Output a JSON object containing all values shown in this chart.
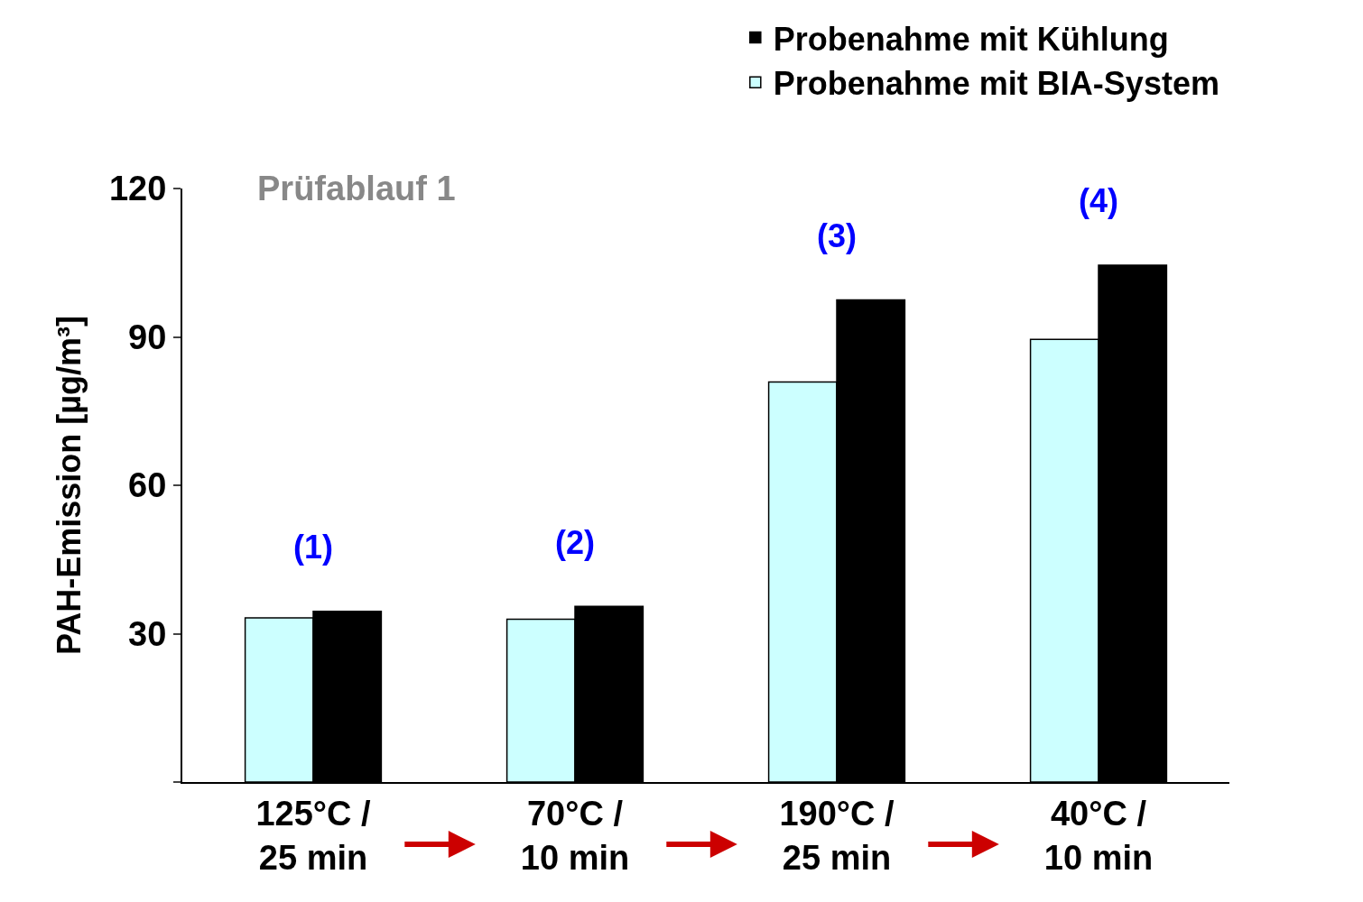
{
  "chart_data": {
    "type": "bar",
    "ylabel": "PAH-Emission [µg/m³]",
    "categories": [
      "125°C /\n25 min",
      "70°C /\n10 min",
      "190°C /\n25 min",
      "40°C /\n10 min"
    ],
    "series": [
      {
        "name": "Probenahme mit BIA-System",
        "color": "#ccffff",
        "values": [
          33.2,
          32.9,
          80.9,
          89.5
        ]
      },
      {
        "name": "Probenahme mit Kühlung",
        "color": "#000000",
        "values": [
          34.5,
          35.5,
          97.5,
          104.5
        ]
      }
    ],
    "ylim": [
      0,
      120
    ],
    "yticks": [
      {
        "value": 0,
        "label": null
      },
      30,
      60,
      90,
      120
    ],
    "legend": "top right",
    "annotations": [
      "Prüfablauf 1",
      "(1)",
      "(2)",
      "(3)",
      "(4)"
    ]
  }
}
